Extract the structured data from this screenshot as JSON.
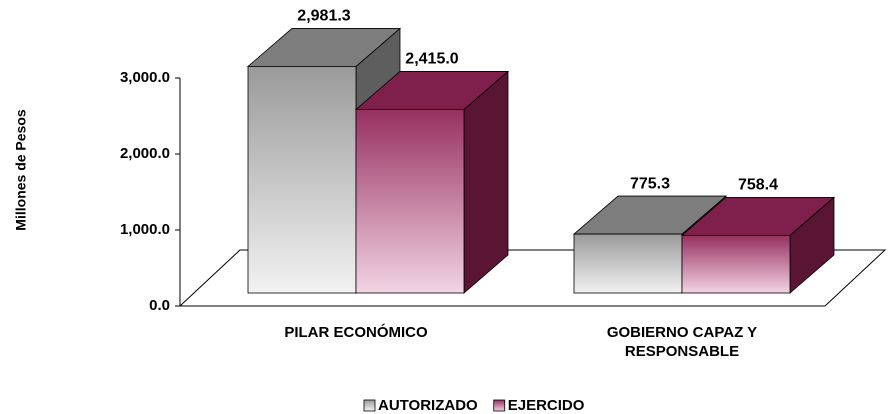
{
  "chart_data": {
    "type": "bar3d",
    "y_label": "Millones de Pesos",
    "categories": [
      "PILAR ECONÓMICO",
      "GOBIERNO CAPAZ Y RESPONSABLE"
    ],
    "series": [
      {
        "name": "AUTORIZADO",
        "color": "#a6a6a6",
        "values": [
          2981.3,
          775.3
        ],
        "value_labels": [
          "2,981.3",
          "775.3"
        ]
      },
      {
        "name": "EJERCIDO",
        "color": "#9e2f66",
        "values": [
          2415.0,
          758.4
        ],
        "value_labels": [
          "2,415.0",
          "758.4"
        ]
      }
    ],
    "ylim": [
      0,
      3000
    ],
    "yticks": [
      {
        "value": 0,
        "label": "0.0"
      },
      {
        "value": 1000,
        "label": "1,000.0"
      },
      {
        "value": 2000,
        "label": "2,000.0"
      },
      {
        "value": 3000,
        "label": "3,000.0"
      }
    ],
    "legend": "bottom"
  }
}
